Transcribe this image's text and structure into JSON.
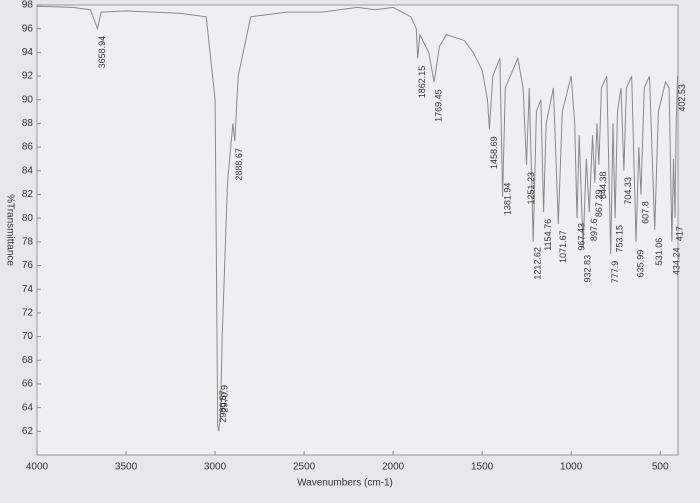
{
  "chart_data": {
    "type": "line",
    "xlabel": "Wavenumbers (cm-1)",
    "ylabel": "%Transmittance",
    "xlim": [
      4000,
      400
    ],
    "ylim": [
      60,
      98
    ],
    "xticks": [
      4000,
      3500,
      3000,
      2500,
      2000,
      1500,
      1000,
      500
    ],
    "yticks": [
      62,
      64,
      66,
      68,
      70,
      72,
      74,
      76,
      78,
      80,
      82,
      84,
      86,
      88,
      90,
      92,
      94,
      96,
      98
    ],
    "color": "#8a8a8a",
    "x": [
      4000,
      3800,
      3700,
      3660,
      3640,
      3500,
      3200,
      3050,
      3000,
      2985,
      2980,
      2970,
      2960,
      2930,
      2900,
      2889,
      2870,
      2800,
      2600,
      2400,
      2200,
      2100,
      2000,
      1950,
      1900,
      1870,
      1862,
      1850,
      1800,
      1770,
      1740,
      1700,
      1600,
      1550,
      1500,
      1470,
      1459,
      1440,
      1400,
      1385,
      1370,
      1300,
      1270,
      1251,
      1235,
      1213,
      1195,
      1170,
      1155,
      1140,
      1100,
      1072,
      1050,
      1000,
      980,
      967,
      955,
      933,
      915,
      898,
      880,
      867,
      855,
      844,
      830,
      800,
      778,
      765,
      753,
      740,
      720,
      704,
      690,
      660,
      636,
      620,
      608,
      590,
      560,
      531,
      510,
      470,
      450,
      434,
      425,
      417,
      410,
      402.53
    ],
    "values": [
      97.9,
      97.8,
      97.6,
      96,
      97.4,
      97.5,
      97.3,
      97,
      90,
      62.5,
      62,
      63,
      70,
      83,
      88,
      86.5,
      92,
      97,
      97.4,
      97.4,
      97.8,
      97.6,
      97.8,
      97.4,
      97,
      96,
      93.5,
      95.5,
      94,
      91.5,
      94.5,
      95.5,
      95,
      94,
      92.5,
      90,
      87.5,
      92,
      93.5,
      81.8,
      91,
      93.5,
      91,
      84.5,
      91,
      78,
      89,
      90,
      80.5,
      88,
      91,
      79.5,
      89,
      92,
      88,
      80,
      87,
      77.5,
      85,
      80.5,
      87,
      83,
      88,
      84.5,
      91,
      92,
      77,
      88,
      80,
      89,
      91,
      84,
      91,
      92,
      78,
      86,
      82,
      91,
      92,
      79,
      89,
      91.5,
      91,
      78,
      85,
      80,
      88,
      92
    ],
    "peaks": [
      3658.94,
      2980.57,
      2970.9,
      2888.67,
      1862.15,
      1769.45,
      1458.69,
      1381.94,
      1251.23,
      1212.62,
      1154.76,
      1071.67,
      967.43,
      932.83,
      897.6,
      867.29,
      844.38,
      777.9,
      753.15,
      704.33,
      635.99,
      607.8,
      531.06,
      434.24,
      417.0,
      402.53
    ]
  }
}
